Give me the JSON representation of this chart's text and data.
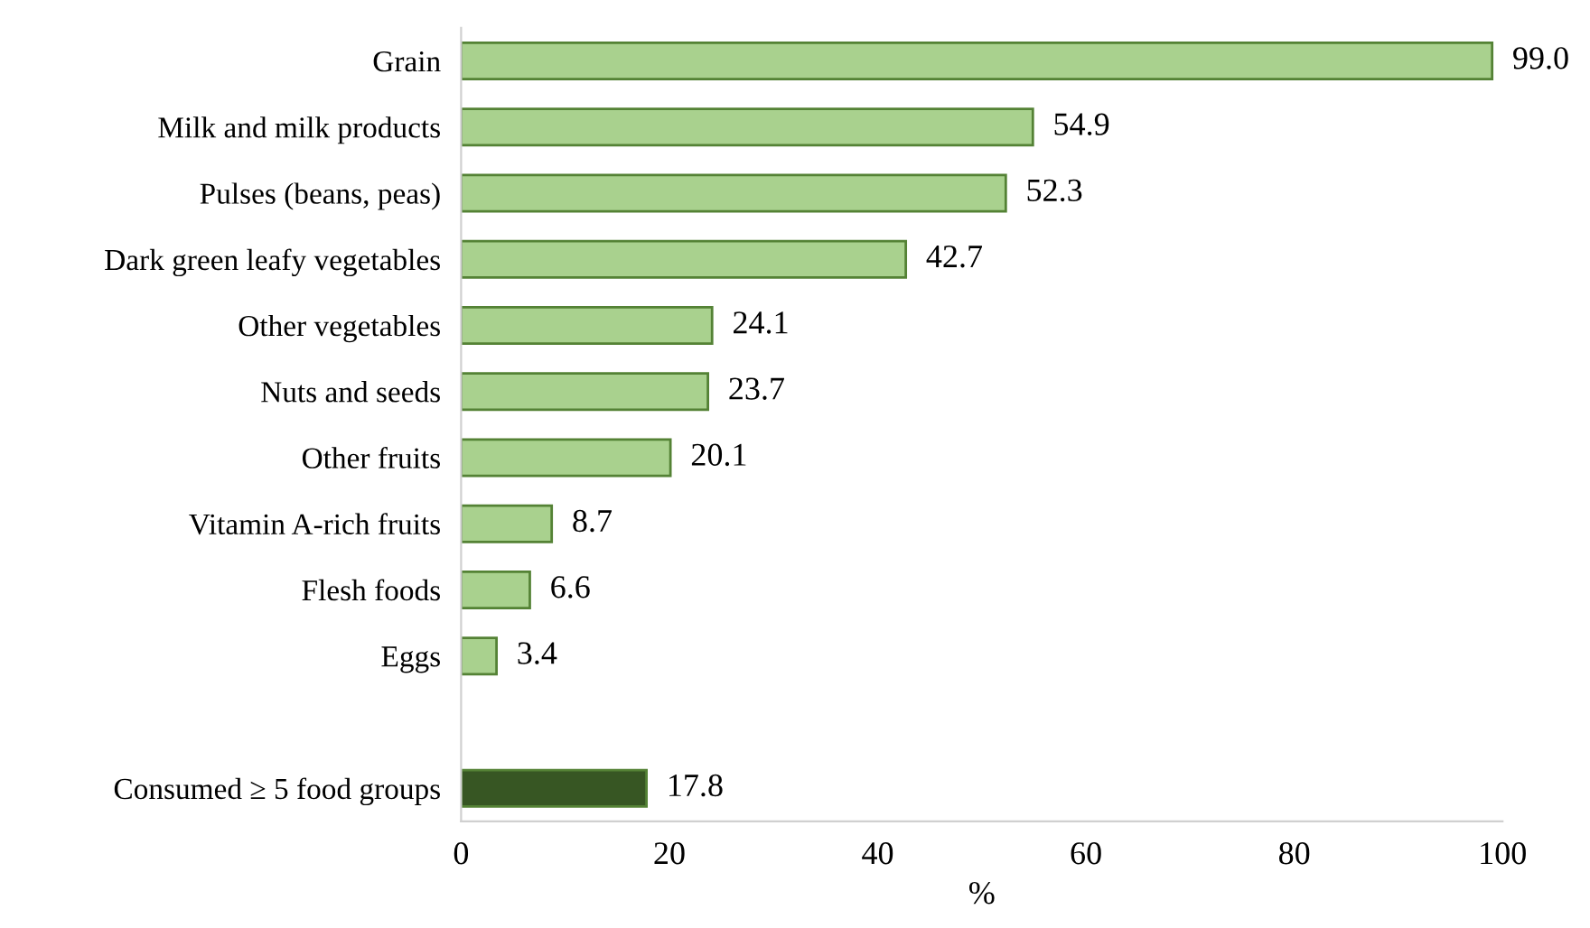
{
  "chart_data": {
    "type": "bar",
    "orientation": "horizontal",
    "xlabel": "%",
    "categories": [
      "Grain",
      "Milk and milk products",
      "Pulses (beans, peas)",
      "Dark green leafy vegetables",
      "Other vegetables",
      "Nuts and seeds",
      "Other fruits",
      "Vitamin A-rich fruits",
      "Flesh foods",
      "Eggs",
      null,
      "Consumed ≥ 5 food groups"
    ],
    "values": [
      99.0,
      54.9,
      52.3,
      42.7,
      24.1,
      23.7,
      20.1,
      8.7,
      6.6,
      3.4,
      null,
      17.8
    ],
    "value_labels": [
      "99.0",
      "54.9",
      "52.3",
      "42.7",
      "24.1",
      "23.7",
      "20.1",
      "8.7",
      "6.6",
      "3.4",
      null,
      "17.8"
    ],
    "colors": [
      "#a9d18e",
      "#a9d18e",
      "#a9d18e",
      "#a9d18e",
      "#a9d18e",
      "#a9d18e",
      "#a9d18e",
      "#a9d18e",
      "#a9d18e",
      "#a9d18e",
      "#a9d18e",
      "#375623"
    ],
    "xlim": [
      0,
      100
    ],
    "xticks": [
      0,
      20,
      40,
      60,
      80,
      100
    ],
    "grid": false
  }
}
